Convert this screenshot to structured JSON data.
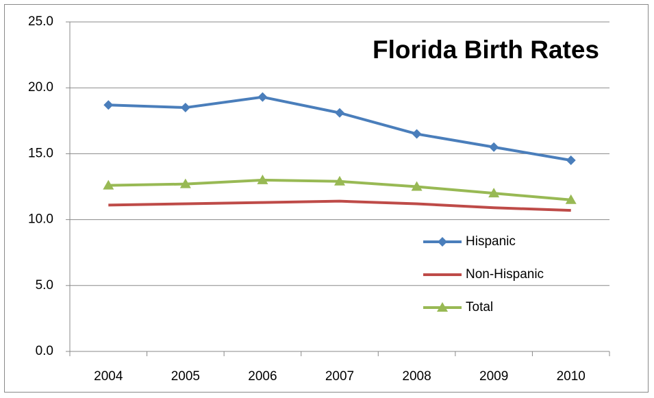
{
  "chart_data": {
    "type": "line",
    "title": "Florida Birth Rates",
    "categories": [
      "2004",
      "2005",
      "2006",
      "2007",
      "2008",
      "2009",
      "2010"
    ],
    "series": [
      {
        "name": "Hispanic",
        "color": "#4a7ebb",
        "marker": "diamond",
        "values": [
          18.7,
          18.5,
          19.3,
          18.1,
          16.5,
          15.5,
          14.5
        ]
      },
      {
        "name": "Non-Hispanic",
        "color": "#be4b48",
        "marker": "none",
        "values": [
          11.1,
          11.2,
          11.3,
          11.4,
          11.2,
          10.9,
          10.7
        ]
      },
      {
        "name": "Total",
        "color": "#98b954",
        "marker": "triangle",
        "values": [
          12.6,
          12.7,
          13.0,
          12.9,
          12.5,
          12.0,
          11.5
        ]
      }
    ],
    "ylim": [
      0,
      25
    ],
    "yticks": [
      {
        "value": 0,
        "label": "0.0"
      },
      {
        "value": 5,
        "label": "5.0"
      },
      {
        "value": 10,
        "label": "10.0"
      },
      {
        "value": 15,
        "label": "15.0"
      },
      {
        "value": 20,
        "label": "20.0"
      },
      {
        "value": 25,
        "label": "25.0"
      }
    ],
    "grid": true,
    "legend": "right"
  }
}
